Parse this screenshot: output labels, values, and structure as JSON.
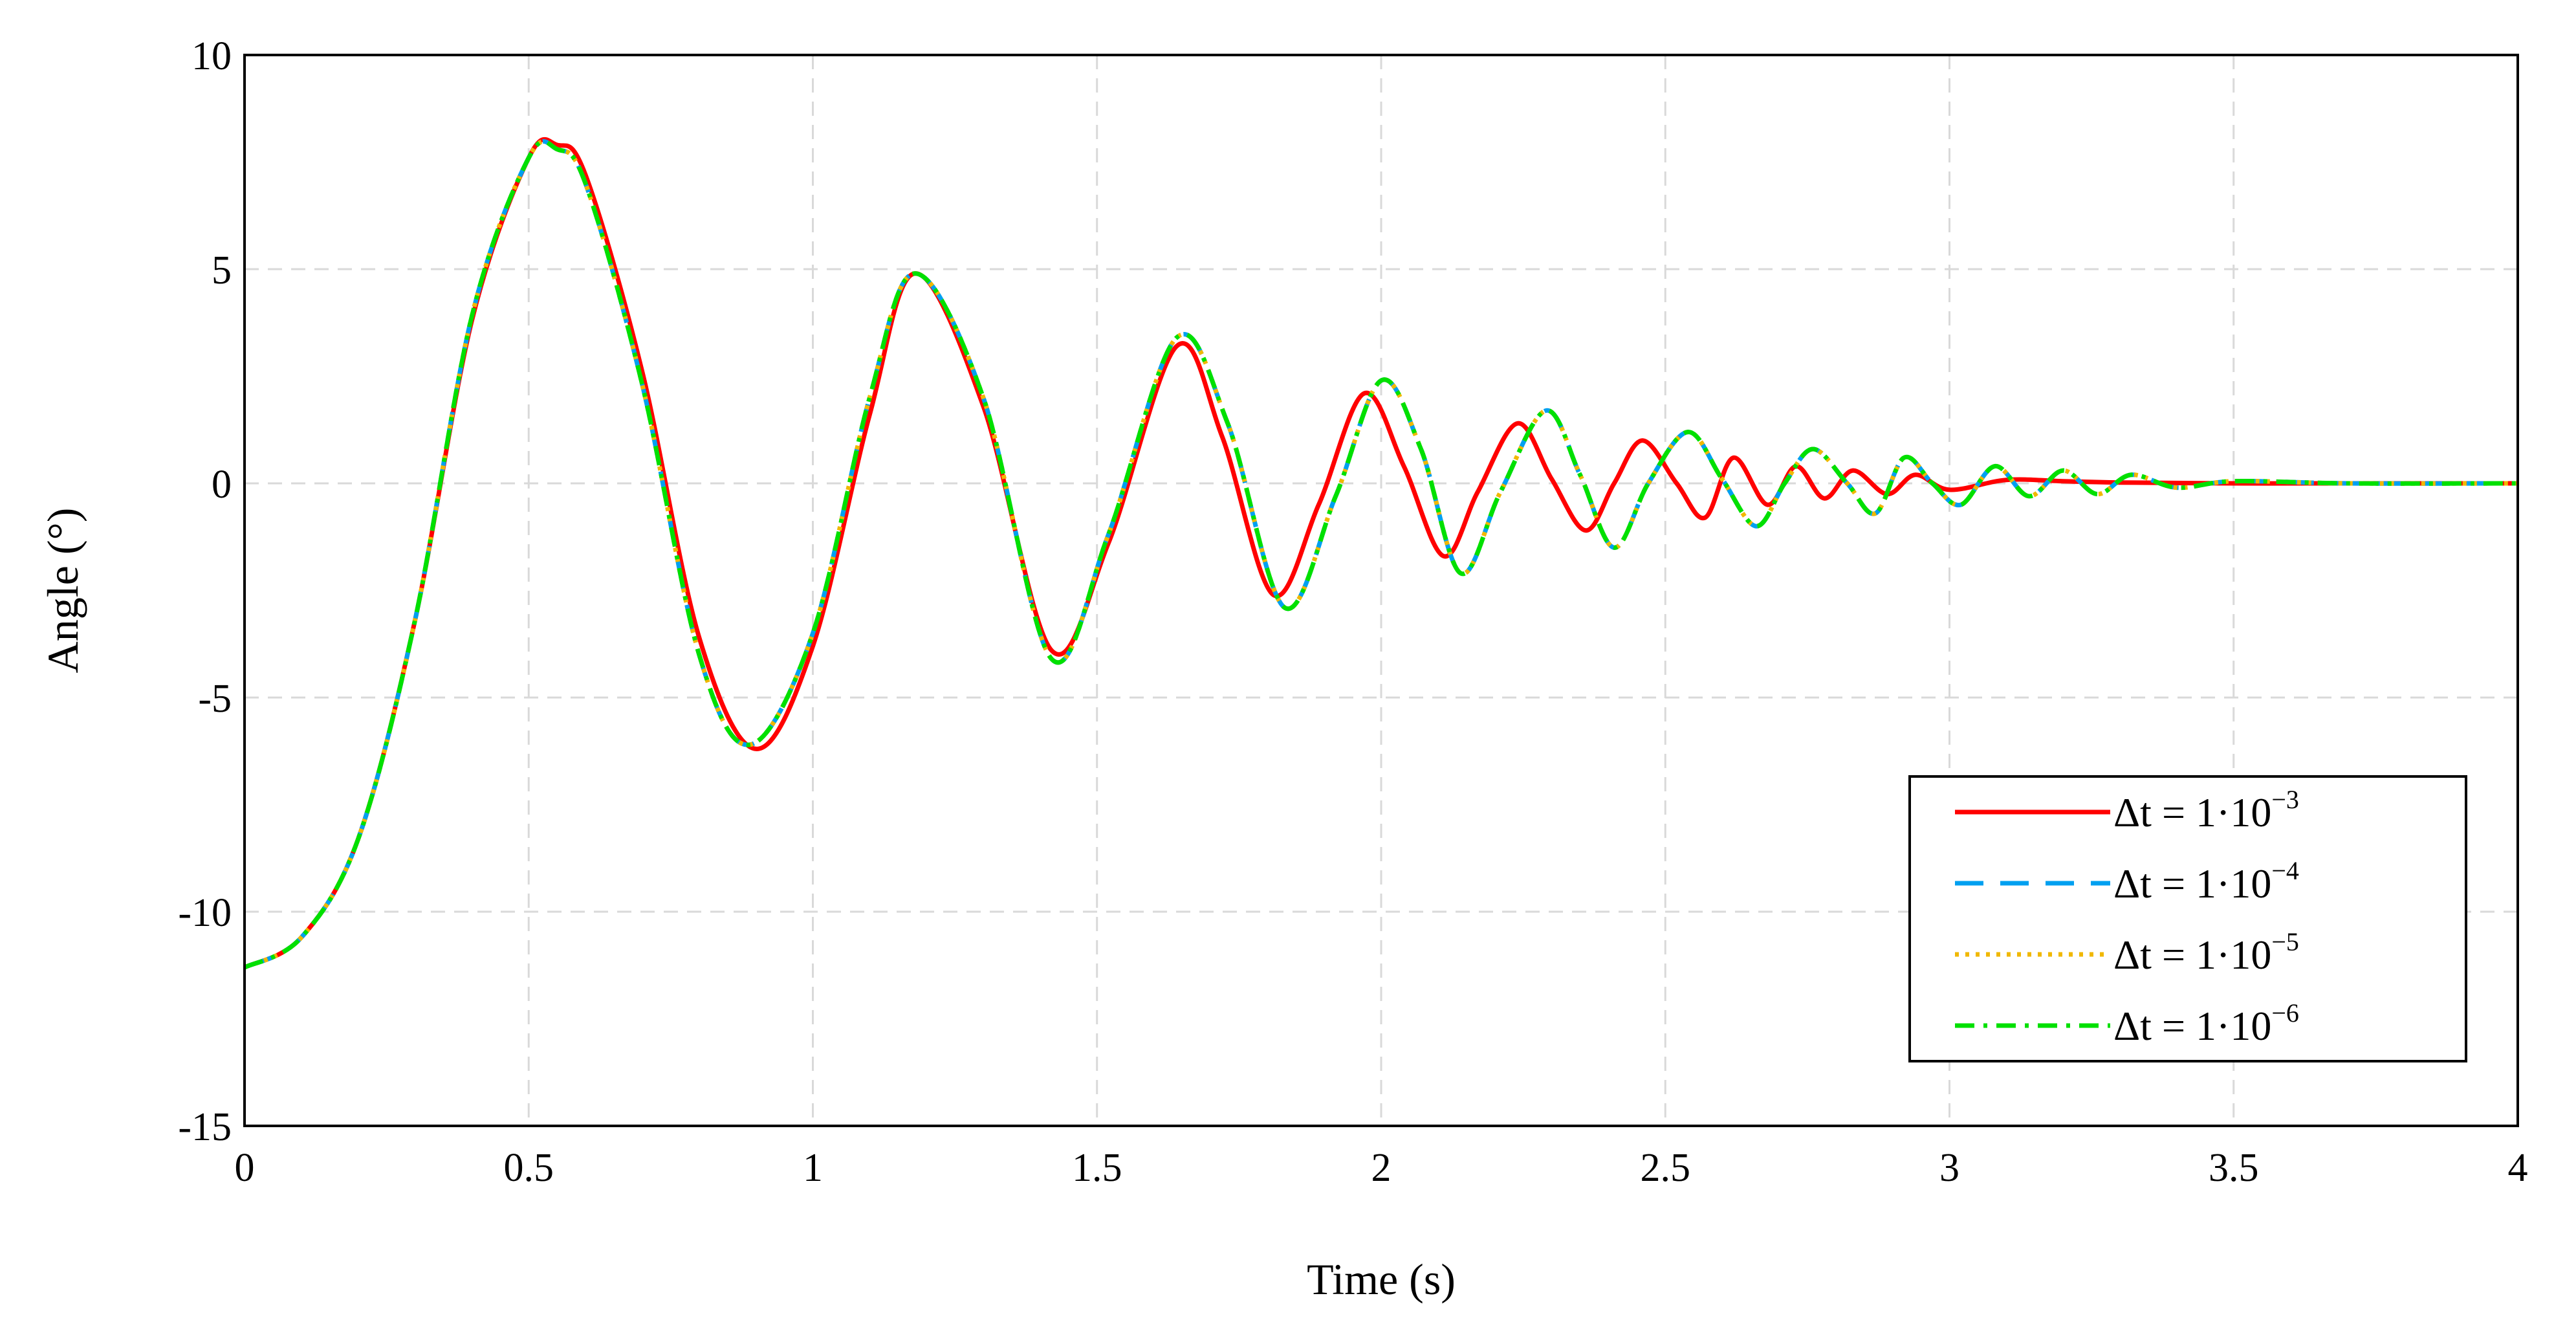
{
  "chart_data": {
    "type": "line",
    "title": "",
    "xlabel": "Time (s)",
    "ylabel": "Angle (°)",
    "xlim": [
      0,
      4
    ],
    "ylim": [
      -15,
      10
    ],
    "xticks": [
      0,
      0.5,
      1,
      1.5,
      2,
      2.5,
      3,
      3.5,
      4
    ],
    "xtick_labels": [
      "0",
      "0.5",
      "1",
      "1.5",
      "2",
      "2.5",
      "3",
      "3.5",
      "4"
    ],
    "yticks": [
      -15,
      -10,
      -5,
      0,
      5,
      10
    ],
    "ytick_labels": [
      "-15",
      "-10",
      "-5",
      "0",
      "5",
      "10"
    ],
    "grid": true,
    "legend_position": "bottom-right",
    "series": [
      {
        "name_base": "Δt = 1·10",
        "name_exp": "−3",
        "color": "#ff0000",
        "dash": "solid",
        "x": [
          0,
          0.1,
          0.2,
          0.3,
          0.4,
          0.5,
          0.55,
          0.6,
          0.7,
          0.8,
          0.9,
          1.0,
          1.1,
          1.18,
          1.3,
          1.42,
          1.52,
          1.64,
          1.72,
          1.81,
          1.89,
          1.97,
          2.04,
          2.11,
          2.17,
          2.24,
          2.3,
          2.36,
          2.41,
          2.46,
          2.52,
          2.57,
          2.62,
          2.68,
          2.73,
          2.78,
          2.83,
          2.89,
          2.94,
          3.0,
          3.1,
          3.2,
          3.3,
          3.5,
          3.7,
          4.0
        ],
        "y": [
          -11.3,
          -10.6,
          -8.3,
          -3.2,
          3.8,
          7.6,
          7.9,
          7.2,
          2.6,
          -3.6,
          -6.2,
          -3.8,
          1.6,
          4.9,
          1.8,
          -3.9,
          -1.4,
          3.2,
          1.1,
          -2.6,
          -0.5,
          2.1,
          0.4,
          -1.7,
          -0.2,
          1.4,
          0.1,
          -1.1,
          0.0,
          1.0,
          0.0,
          -0.8,
          0.6,
          -0.5,
          0.4,
          -0.35,
          0.3,
          -0.25,
          0.2,
          -0.15,
          0.08,
          0.05,
          0.02,
          0.0,
          0.0,
          0.0
        ]
      },
      {
        "name_base": "Δt = 1·10",
        "name_exp": "−4",
        "color": "#00a0f0",
        "dash": "dashed",
        "x": [
          0,
          0.1,
          0.2,
          0.3,
          0.4,
          0.5,
          0.55,
          0.6,
          0.7,
          0.8,
          0.89,
          1.0,
          1.1,
          1.18,
          1.3,
          1.42,
          1.52,
          1.64,
          1.73,
          1.83,
          1.92,
          2.0,
          2.07,
          2.14,
          2.21,
          2.29,
          2.35,
          2.41,
          2.47,
          2.54,
          2.6,
          2.66,
          2.71,
          2.76,
          2.82,
          2.87,
          2.92,
          2.97,
          3.02,
          3.08,
          3.14,
          3.2,
          3.26,
          3.32,
          3.4,
          3.5,
          3.7,
          4.0
        ],
        "y": [
          -11.3,
          -10.6,
          -8.3,
          -3.2,
          3.9,
          7.6,
          7.8,
          7.0,
          2.3,
          -4.0,
          -6.1,
          -3.5,
          2.0,
          4.9,
          2.0,
          -4.1,
          -1.2,
          3.4,
          1.4,
          -2.9,
          -0.3,
          2.4,
          0.8,
          -2.1,
          -0.2,
          1.7,
          0.2,
          -1.5,
          0.0,
          1.2,
          0.1,
          -1.0,
          0.0,
          0.8,
          0.0,
          -0.7,
          0.6,
          0.0,
          -0.5,
          0.4,
          -0.3,
          0.3,
          -0.25,
          0.2,
          -0.1,
          0.05,
          0.0,
          0.0
        ]
      },
      {
        "name_base": "Δt = 1·10",
        "name_exp": "−5",
        "color": "#f0b800",
        "dash": "dotted",
        "x": [
          0,
          0.1,
          0.2,
          0.3,
          0.4,
          0.5,
          0.55,
          0.6,
          0.7,
          0.8,
          0.89,
          1.0,
          1.1,
          1.18,
          1.3,
          1.42,
          1.52,
          1.64,
          1.73,
          1.83,
          1.92,
          2.0,
          2.07,
          2.14,
          2.21,
          2.29,
          2.35,
          2.41,
          2.47,
          2.54,
          2.6,
          2.66,
          2.71,
          2.76,
          2.82,
          2.87,
          2.92,
          2.97,
          3.02,
          3.08,
          3.14,
          3.2,
          3.26,
          3.32,
          3.4,
          3.5,
          3.7,
          4.0
        ],
        "y": [
          -11.3,
          -10.6,
          -8.3,
          -3.2,
          3.9,
          7.6,
          7.8,
          7.0,
          2.3,
          -4.0,
          -6.1,
          -3.5,
          2.0,
          4.9,
          2.0,
          -4.1,
          -1.2,
          3.4,
          1.4,
          -2.9,
          -0.3,
          2.4,
          0.8,
          -2.1,
          -0.2,
          1.7,
          0.2,
          -1.5,
          0.0,
          1.2,
          0.1,
          -1.0,
          0.0,
          0.8,
          0.0,
          -0.7,
          0.6,
          0.0,
          -0.5,
          0.4,
          -0.3,
          0.3,
          -0.25,
          0.2,
          -0.1,
          0.05,
          0.0,
          0.0
        ]
      },
      {
        "name_base": "Δt = 1·10",
        "name_exp": "−6",
        "color": "#00e000",
        "dash": "dashdot",
        "x": [
          0,
          0.1,
          0.2,
          0.3,
          0.4,
          0.5,
          0.55,
          0.6,
          0.7,
          0.8,
          0.89,
          1.0,
          1.1,
          1.18,
          1.3,
          1.42,
          1.52,
          1.64,
          1.73,
          1.83,
          1.92,
          2.0,
          2.07,
          2.14,
          2.21,
          2.29,
          2.35,
          2.41,
          2.47,
          2.54,
          2.6,
          2.66,
          2.71,
          2.76,
          2.82,
          2.87,
          2.92,
          2.97,
          3.02,
          3.08,
          3.14,
          3.2,
          3.26,
          3.32,
          3.4,
          3.5,
          3.7,
          4.0
        ],
        "y": [
          -11.3,
          -10.6,
          -8.3,
          -3.2,
          3.9,
          7.6,
          7.8,
          7.0,
          2.3,
          -4.0,
          -6.1,
          -3.5,
          2.0,
          4.9,
          2.0,
          -4.1,
          -1.2,
          3.4,
          1.4,
          -2.9,
          -0.3,
          2.4,
          0.8,
          -2.1,
          -0.2,
          1.7,
          0.2,
          -1.5,
          0.0,
          1.2,
          0.1,
          -1.0,
          0.0,
          0.8,
          0.0,
          -0.7,
          0.6,
          0.0,
          -0.5,
          0.4,
          -0.3,
          0.3,
          -0.25,
          0.2,
          -0.1,
          0.05,
          0.0,
          0.0
        ]
      }
    ]
  }
}
